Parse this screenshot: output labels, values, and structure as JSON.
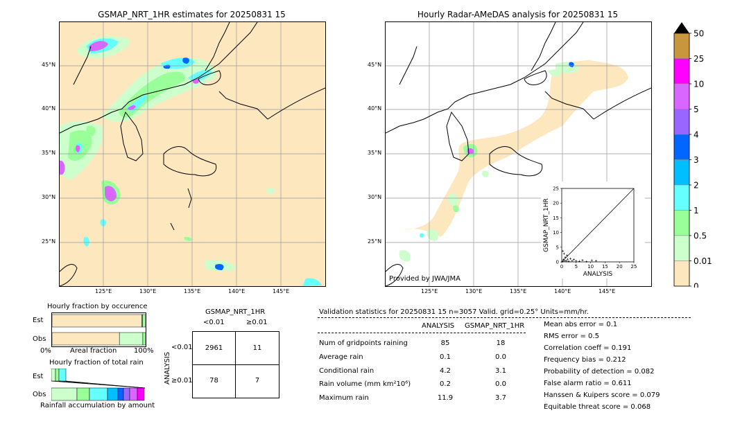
{
  "left_map": {
    "title": "GSMAP_NRT_1HR estimates for 20250831 15",
    "lat_labels": [
      "45°N",
      "40°N",
      "35°N",
      "30°N",
      "25°N"
    ],
    "lon_labels": [
      "125°E",
      "130°E",
      "135°E",
      "140°E",
      "145°E"
    ]
  },
  "right_map": {
    "title": "Hourly Radar-AMeDAS analysis for 20250831 15",
    "lat_labels": [
      "45°N",
      "40°N",
      "35°N",
      "30°N",
      "25°N"
    ],
    "lon_labels": [
      "125°E",
      "130°E",
      "135°E",
      "140°E",
      "145°E"
    ],
    "credit": "Provided by JWA/JMA"
  },
  "colorbar": {
    "labels": [
      "50",
      "25",
      "10",
      "5",
      "4",
      "3",
      "2",
      "1",
      "0.5",
      "0.01",
      "0"
    ],
    "colors": [
      "#c8963c",
      "#ff00ff",
      "#d966ff",
      "#9966ff",
      "#0066ff",
      "#00bfff",
      "#66ffff",
      "#99ff99",
      "#ccffcc",
      "#fde7bf"
    ]
  },
  "scatter_inset": {
    "xlabel": "ANALYSIS",
    "ylabel": "GSMAP_NRT_1HR",
    "ticks": [
      "0",
      "5",
      "10",
      "15",
      "20",
      "25"
    ]
  },
  "chart_data": [
    {
      "type": "scatter",
      "title": "",
      "xlabel": "ANALYSIS",
      "ylabel": "GSMAP_NRT_1HR",
      "xlim": [
        0,
        25
      ],
      "ylim": [
        0,
        25
      ],
      "points": [
        [
          0.3,
          0.2
        ],
        [
          0.6,
          0.8
        ],
        [
          1.0,
          0.4
        ],
        [
          1.2,
          1.6
        ],
        [
          1.6,
          0.3
        ],
        [
          2.0,
          0.9
        ],
        [
          2.4,
          0.2
        ],
        [
          3.0,
          1.1
        ],
        [
          3.6,
          0.4
        ],
        [
          4.2,
          0.8
        ],
        [
          5.0,
          0.3
        ],
        [
          6.1,
          0.2
        ],
        [
          7.2,
          0.6
        ],
        [
          8.6,
          0.1
        ],
        [
          10.4,
          0.5
        ],
        [
          11.9,
          0.3
        ],
        [
          0.8,
          2.8
        ],
        [
          1.8,
          2.2
        ],
        [
          0.4,
          3.7
        ]
      ]
    },
    {
      "type": "bar",
      "title": "Hourly fraction by occurence",
      "categories": [
        "Est",
        "Obs"
      ],
      "series": [
        {
          "values": [
            0.96,
            0.72
          ]
        },
        {
          "values": [
            0.006,
            0.25
          ]
        },
        {
          "values": [
            0.034,
            0.03
          ]
        }
      ]
    }
  ],
  "fraction_occ": {
    "title": "Hourly fraction by occurence",
    "row_labels": [
      "Est",
      "Obs"
    ],
    "xlabel": "Areal fraction",
    "left": "0%",
    "right": "100%"
  },
  "fraction_total": {
    "title": "Hourly fraction of total rain",
    "row_labels": [
      "Est",
      "Obs"
    ],
    "xlabel": "Rainfall accumulation by amount"
  },
  "contingency": {
    "top_title": "GSMAP_NRT_1HR",
    "col_labels": [
      "<0.01",
      "≥0.01"
    ],
    "side_title": "ANALYSIS",
    "row_labels": [
      "<0.01",
      "≥0.01"
    ],
    "cells": [
      [
        "2961",
        "11"
      ],
      [
        "78",
        "7"
      ]
    ]
  },
  "validation": {
    "header": "Validation statistics for 20250831 15  n=3057 Valid. grid=0.25° Units=mm/hr.",
    "col_analysis": "ANALYSIS",
    "col_gsmap": "GSMAP_NRT_1HR",
    "rows": [
      {
        "label": "Num of gridpoints raining",
        "a": "85",
        "g": "18"
      },
      {
        "label": "Average rain",
        "a": "0.1",
        "g": "0.0"
      },
      {
        "label": "Conditional rain",
        "a": "4.2",
        "g": "3.1"
      },
      {
        "label": "Rain volume (mm km²10⁶)",
        "a": "0.2",
        "g": "0.0"
      },
      {
        "label": "Maximum rain",
        "a": "11.9",
        "g": "3.7"
      }
    ],
    "scores": [
      "Mean abs error =    0.1",
      "RMS error =    0.5",
      "Correlation coeff =  0.191",
      "Frequency bias =  0.212",
      "Probability of detection =  0.082",
      "False alarm ratio =  0.611",
      "Hanssen & Kuipers score =  0.079",
      "Equitable threat score =  0.068"
    ]
  }
}
